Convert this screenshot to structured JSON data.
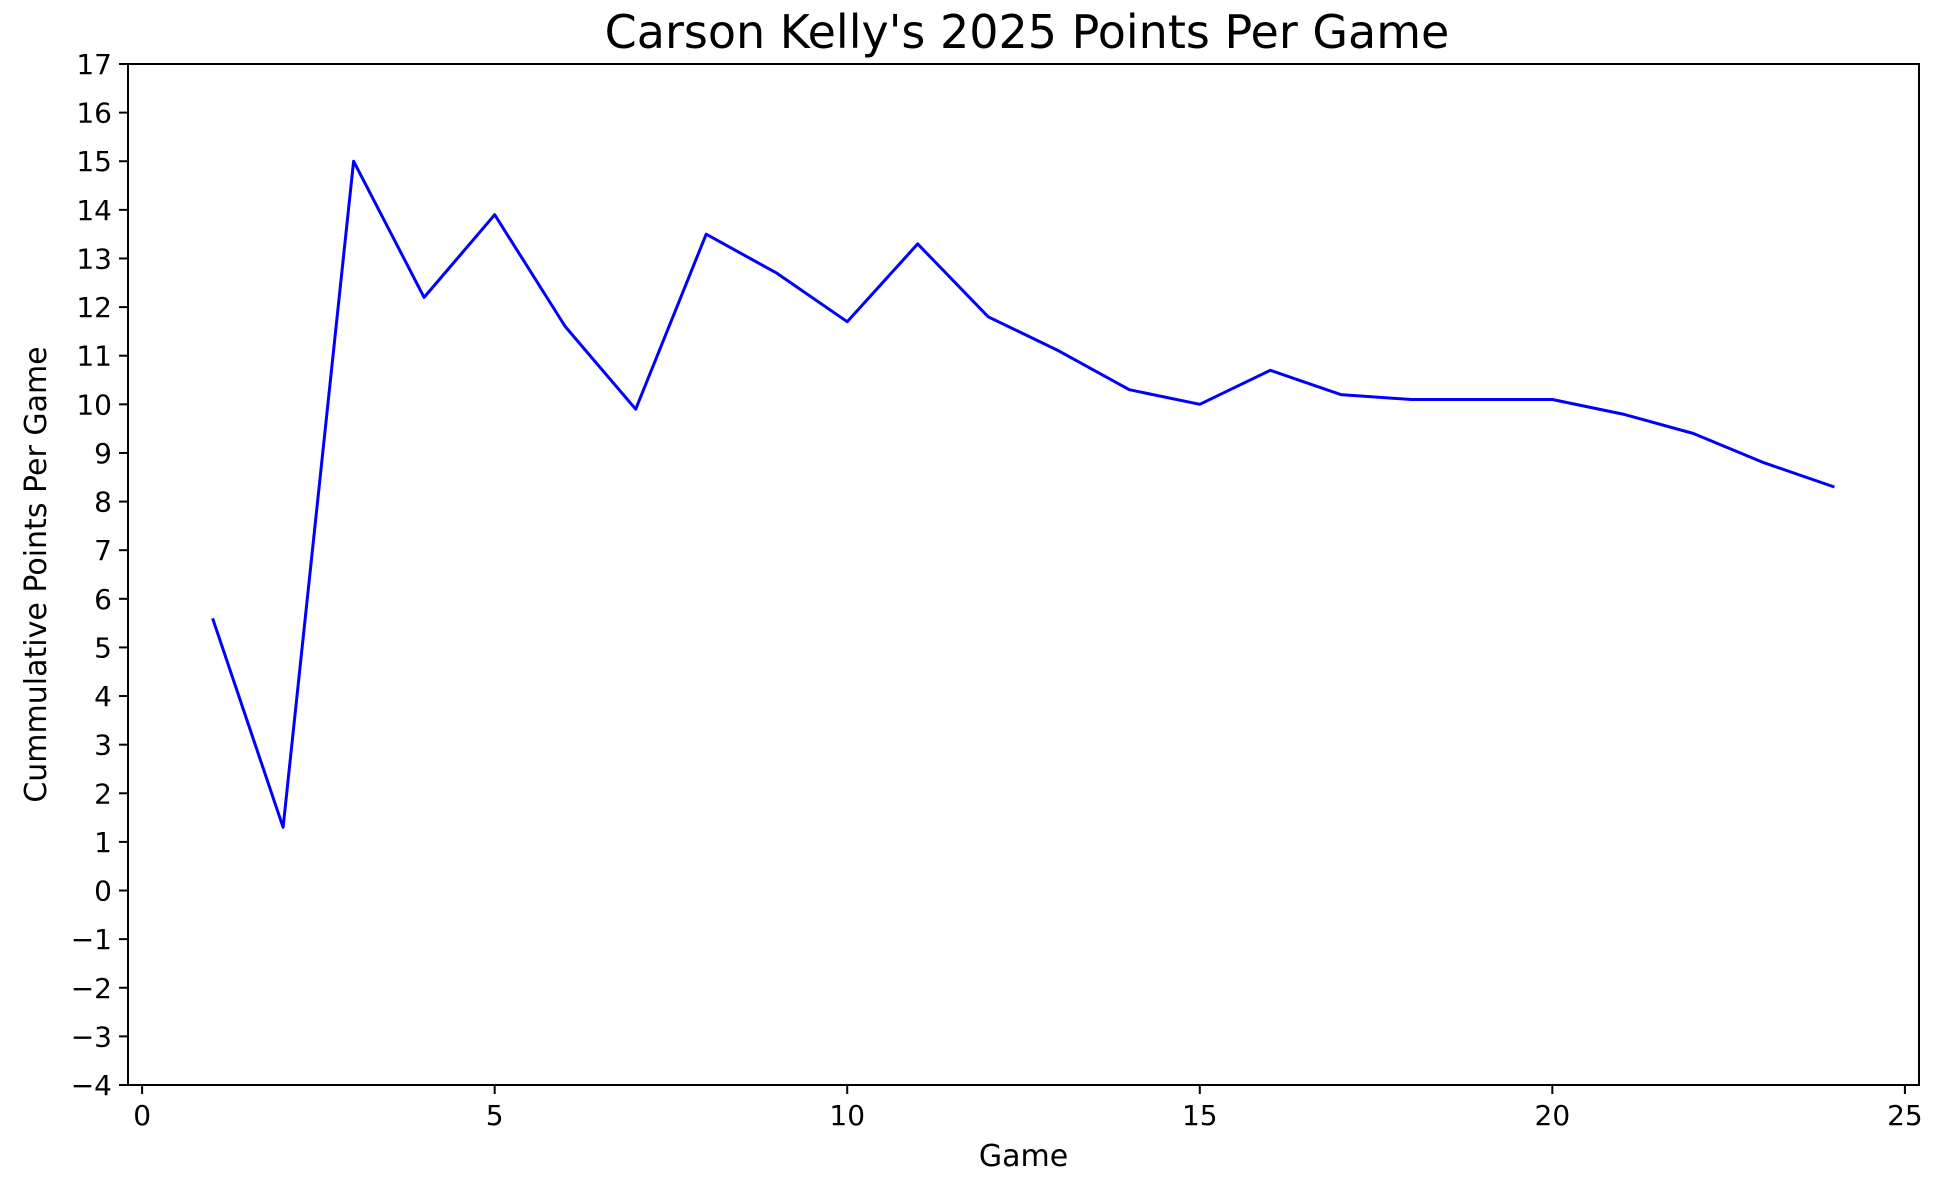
{
  "chart_data": {
    "type": "line",
    "title": "Carson Kelly's 2025 Points Per Game",
    "xlabel": "Game",
    "ylabel": "Cummulative Points Per Game",
    "xlim": [
      -0.2,
      25.2
    ],
    "ylim": [
      -4,
      17
    ],
    "x_ticks": [
      0,
      5,
      10,
      15,
      20,
      25
    ],
    "y_ticks": [
      -4,
      -3,
      -2,
      -1,
      0,
      1,
      2,
      3,
      4,
      5,
      6,
      7,
      8,
      9,
      10,
      11,
      12,
      13,
      14,
      15,
      16,
      17
    ],
    "grid": false,
    "series": [
      {
        "color": "#0000ff",
        "x": [
          1,
          2,
          3,
          4,
          5,
          6,
          7,
          8,
          9,
          10,
          11,
          12,
          13,
          14,
          15,
          16,
          17,
          18,
          19,
          20,
          21,
          22,
          23,
          24
        ],
        "y": [
          5.6,
          1.3,
          15.0,
          12.2,
          13.9,
          11.6,
          9.9,
          13.5,
          12.7,
          11.7,
          13.3,
          11.8,
          11.1,
          10.3,
          10.0,
          10.7,
          10.2,
          10.1,
          10.1,
          10.1,
          9.8,
          9.4,
          8.8,
          8.3
        ]
      }
    ]
  }
}
